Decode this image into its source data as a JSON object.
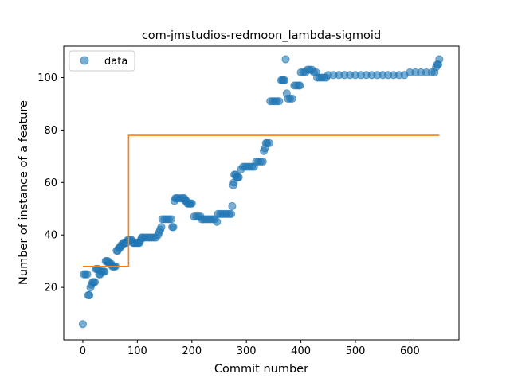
{
  "chart_data": {
    "type": "scatter",
    "title": "com-jmstudios-redmoon_lambda-sigmoid",
    "xlabel": "Commit number",
    "ylabel": "Number of instance of a feature",
    "xlim": [
      -35,
      690
    ],
    "ylim": [
      0,
      112
    ],
    "xticks": [
      0,
      100,
      200,
      300,
      400,
      500,
      600
    ],
    "yticks": [
      20,
      40,
      60,
      80,
      100
    ],
    "legend": {
      "placement": "top-left",
      "entries": [
        "data"
      ]
    },
    "colors": {
      "scatter": "#1f77b4",
      "line": "#ff7f0e"
    },
    "grid": false,
    "series": [
      {
        "name": "data",
        "kind": "scatter",
        "points": [
          [
            0,
            6
          ],
          [
            2,
            25
          ],
          [
            5,
            25
          ],
          [
            8,
            25
          ],
          [
            10,
            17
          ],
          [
            12,
            17
          ],
          [
            14,
            20
          ],
          [
            16,
            21
          ],
          [
            18,
            22
          ],
          [
            20,
            22
          ],
          [
            22,
            22
          ],
          [
            24,
            27
          ],
          [
            26,
            27
          ],
          [
            28,
            27
          ],
          [
            30,
            25
          ],
          [
            32,
            25
          ],
          [
            34,
            26
          ],
          [
            36,
            26
          ],
          [
            38,
            26
          ],
          [
            40,
            26
          ],
          [
            42,
            30
          ],
          [
            44,
            30
          ],
          [
            46,
            30
          ],
          [
            48,
            29
          ],
          [
            50,
            29
          ],
          [
            52,
            29
          ],
          [
            54,
            28
          ],
          [
            56,
            28
          ],
          [
            58,
            28
          ],
          [
            60,
            28
          ],
          [
            62,
            34
          ],
          [
            64,
            34
          ],
          [
            66,
            35
          ],
          [
            68,
            35
          ],
          [
            70,
            36
          ],
          [
            72,
            36
          ],
          [
            74,
            37
          ],
          [
            76,
            37
          ],
          [
            78,
            37
          ],
          [
            80,
            37
          ],
          [
            82,
            38
          ],
          [
            84,
            38
          ],
          [
            86,
            38
          ],
          [
            88,
            38
          ],
          [
            90,
            38
          ],
          [
            92,
            37
          ],
          [
            94,
            37
          ],
          [
            96,
            37
          ],
          [
            98,
            37
          ],
          [
            100,
            37
          ],
          [
            102,
            37
          ],
          [
            104,
            37
          ],
          [
            106,
            38
          ],
          [
            108,
            39
          ],
          [
            110,
            39
          ],
          [
            114,
            39
          ],
          [
            118,
            39
          ],
          [
            122,
            39
          ],
          [
            126,
            39
          ],
          [
            130,
            39
          ],
          [
            134,
            39
          ],
          [
            138,
            40
          ],
          [
            140,
            41
          ],
          [
            142,
            42
          ],
          [
            144,
            43
          ],
          [
            146,
            46
          ],
          [
            150,
            46
          ],
          [
            154,
            46
          ],
          [
            158,
            46
          ],
          [
            162,
            46
          ],
          [
            164,
            43
          ],
          [
            166,
            43
          ],
          [
            168,
            53
          ],
          [
            170,
            54
          ],
          [
            172,
            54
          ],
          [
            176,
            54
          ],
          [
            180,
            54
          ],
          [
            184,
            54
          ],
          [
            186,
            54
          ],
          [
            188,
            53
          ],
          [
            190,
            53
          ],
          [
            192,
            52
          ],
          [
            194,
            52
          ],
          [
            196,
            52
          ],
          [
            198,
            52
          ],
          [
            200,
            52
          ],
          [
            204,
            47
          ],
          [
            208,
            47
          ],
          [
            212,
            47
          ],
          [
            216,
            47
          ],
          [
            218,
            46
          ],
          [
            222,
            46
          ],
          [
            226,
            46
          ],
          [
            230,
            46
          ],
          [
            234,
            46
          ],
          [
            238,
            46
          ],
          [
            242,
            46
          ],
          [
            246,
            45
          ],
          [
            248,
            48
          ],
          [
            252,
            48
          ],
          [
            256,
            48
          ],
          [
            260,
            48
          ],
          [
            264,
            48
          ],
          [
            268,
            48
          ],
          [
            272,
            48
          ],
          [
            274,
            51
          ],
          [
            276,
            59
          ],
          [
            277,
            60
          ],
          [
            278,
            63
          ],
          [
            280,
            63
          ],
          [
            282,
            62
          ],
          [
            284,
            62
          ],
          [
            286,
            62
          ],
          [
            290,
            65
          ],
          [
            294,
            66
          ],
          [
            298,
            66
          ],
          [
            302,
            66
          ],
          [
            306,
            66
          ],
          [
            310,
            66
          ],
          [
            314,
            66
          ],
          [
            318,
            68
          ],
          [
            322,
            68
          ],
          [
            326,
            68
          ],
          [
            330,
            68
          ],
          [
            332,
            72
          ],
          [
            334,
            73
          ],
          [
            336,
            75
          ],
          [
            338,
            75
          ],
          [
            342,
            75
          ],
          [
            344,
            91
          ],
          [
            348,
            91
          ],
          [
            352,
            91
          ],
          [
            356,
            91
          ],
          [
            360,
            91
          ],
          [
            364,
            99
          ],
          [
            366,
            99
          ],
          [
            368,
            99
          ],
          [
            370,
            99
          ],
          [
            372,
            107
          ],
          [
            374,
            94
          ],
          [
            376,
            92
          ],
          [
            380,
            92
          ],
          [
            384,
            92
          ],
          [
            388,
            97
          ],
          [
            392,
            97
          ],
          [
            396,
            97
          ],
          [
            398,
            97
          ],
          [
            400,
            102
          ],
          [
            404,
            102
          ],
          [
            408,
            102
          ],
          [
            412,
            103
          ],
          [
            416,
            103
          ],
          [
            420,
            103
          ],
          [
            424,
            102
          ],
          [
            428,
            102
          ],
          [
            430,
            100
          ],
          [
            434,
            100
          ],
          [
            438,
            100
          ],
          [
            442,
            100
          ],
          [
            446,
            100
          ],
          [
            450,
            101
          ],
          [
            460,
            101
          ],
          [
            470,
            101
          ],
          [
            480,
            101
          ],
          [
            490,
            101
          ],
          [
            500,
            101
          ],
          [
            510,
            101
          ],
          [
            520,
            101
          ],
          [
            530,
            101
          ],
          [
            540,
            101
          ],
          [
            550,
            101
          ],
          [
            560,
            101
          ],
          [
            570,
            101
          ],
          [
            580,
            101
          ],
          [
            590,
            101
          ],
          [
            600,
            102
          ],
          [
            610,
            102
          ],
          [
            620,
            102
          ],
          [
            630,
            102
          ],
          [
            640,
            102
          ],
          [
            645,
            102
          ],
          [
            648,
            104
          ],
          [
            650,
            105
          ],
          [
            652,
            105
          ],
          [
            654,
            107
          ]
        ]
      },
      {
        "name": "",
        "kind": "line",
        "points": [
          [
            0,
            28
          ],
          [
            84,
            28
          ],
          [
            84,
            78
          ],
          [
            654,
            78
          ]
        ]
      }
    ]
  }
}
